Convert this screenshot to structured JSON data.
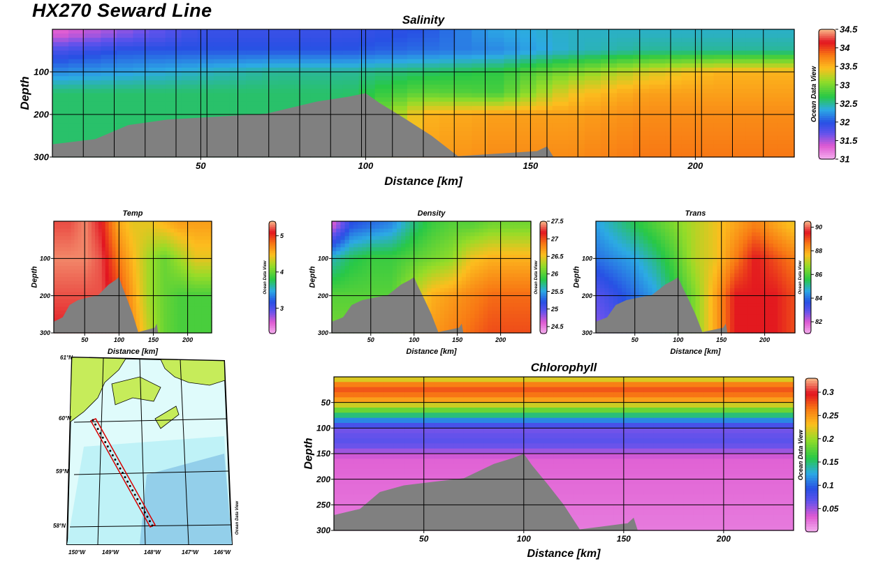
{
  "page_title": "HX270 Seward Line",
  "chart_data": [
    {
      "id": "salinity",
      "type": "heatmap",
      "title": "Salinity",
      "xlabel": "Distance [km]",
      "ylabel": "Depth",
      "xlim": [
        5,
        230
      ],
      "ylim": [
        300,
        0
      ],
      "x_ticks": [
        50,
        100,
        150,
        200
      ],
      "y_ticks": [
        100,
        200,
        300
      ],
      "colorbar": {
        "ticks": [
          "34.5",
          "34",
          "33.5",
          "33",
          "32.5",
          "32",
          "31.5",
          "31"
        ],
        "range": [
          31,
          34.5
        ]
      },
      "watermark": "Ocean Data View",
      "layers": [
        {
          "depth": 10,
          "values": [
            31.3,
            31.6,
            31.9,
            31.9,
            31.9,
            32.0,
            32.3,
            32.4,
            32.4,
            32.4,
            32.4
          ]
        },
        {
          "depth": 50,
          "values": [
            31.8,
            32.0,
            32.0,
            32.0,
            32.0,
            32.1,
            32.2,
            32.4,
            32.5,
            32.5,
            32.5
          ]
        },
        {
          "depth": 100,
          "values": [
            32.2,
            32.3,
            32.4,
            32.5,
            32.5,
            32.6,
            32.7,
            33.0,
            33.3,
            33.5,
            33.5
          ]
        },
        {
          "depth": 150,
          "values": [
            32.6,
            32.6,
            32.6,
            32.6,
            32.6,
            32.9,
            32.8,
            33.4,
            33.6,
            33.6,
            33.6
          ]
        },
        {
          "depth": 200,
          "values": [
            32.6,
            32.6,
            32.6,
            32.6,
            32.6,
            33.5,
            33.6,
            33.6,
            33.7,
            33.7,
            33.7
          ]
        },
        {
          "depth": 300,
          "values": [
            32.6,
            32.6,
            32.6,
            32.6,
            32.6,
            33.6,
            33.7,
            33.7,
            33.8,
            33.8,
            33.8
          ]
        }
      ]
    },
    {
      "id": "temp",
      "type": "heatmap",
      "title": "Temp",
      "xlabel": "Distance [km]",
      "ylabel": "Depth",
      "xlim": [
        5,
        235
      ],
      "ylim": [
        300,
        0
      ],
      "x_ticks": [
        50,
        100,
        150,
        200
      ],
      "y_ticks": [
        100,
        200,
        300
      ],
      "colorbar": {
        "ticks": [
          "5",
          "4",
          "3"
        ],
        "range": [
          2.3,
          5.4
        ]
      },
      "watermark": "Ocean Data View",
      "layers": [
        {
          "depth": 10,
          "values": [
            5.2,
            5.2,
            5.3,
            5.1,
            4.6,
            4.4,
            4.4,
            4.5,
            4.6,
            4.6,
            4.6
          ]
        },
        {
          "depth": 100,
          "values": [
            5.3,
            5.3,
            5.3,
            5.2,
            4.8,
            4.5,
            4.2,
            4.0,
            4.2,
            4.4,
            4.4
          ]
        },
        {
          "depth": 200,
          "values": [
            5.2,
            5.2,
            5.2,
            5.2,
            5.0,
            4.6,
            4.2,
            4.0,
            3.9,
            3.9,
            3.9
          ]
        },
        {
          "depth": 300,
          "values": [
            5.1,
            5.1,
            5.1,
            5.1,
            5.1,
            4.7,
            4.3,
            4.0,
            3.9,
            3.9,
            3.9
          ]
        }
      ]
    },
    {
      "id": "density",
      "type": "heatmap",
      "title": "Density",
      "xlabel": "Distance [km]",
      "ylabel": "Depth",
      "xlim": [
        5,
        235
      ],
      "ylim": [
        300,
        0
      ],
      "x_ticks": [
        50,
        100,
        150,
        200
      ],
      "y_ticks": [
        100,
        200,
        300
      ],
      "colorbar": {
        "ticks": [
          "27.5",
          "27",
          "26.5",
          "26",
          "25.5",
          "25",
          "24.5"
        ],
        "range": [
          24.3,
          27.5
        ]
      },
      "watermark": "Ocean Data View",
      "layers": [
        {
          "depth": 10,
          "values": [
            24.6,
            25.2,
            25.3,
            25.4,
            25.7,
            25.9,
            26.0,
            26.0,
            26.1,
            26.1,
            26.1
          ]
        },
        {
          "depth": 100,
          "values": [
            25.6,
            25.8,
            25.9,
            25.9,
            26.0,
            26.1,
            26.2,
            26.5,
            26.6,
            26.6,
            26.6
          ]
        },
        {
          "depth": 200,
          "values": [
            26.0,
            26.0,
            26.0,
            26.0,
            26.3,
            26.6,
            26.7,
            26.8,
            26.9,
            26.9,
            26.9
          ]
        },
        {
          "depth": 300,
          "values": [
            26.1,
            26.1,
            26.1,
            26.1,
            26.5,
            26.7,
            26.8,
            26.9,
            27.0,
            27.0,
            27.0
          ]
        }
      ]
    },
    {
      "id": "trans",
      "type": "heatmap",
      "title": "Trans",
      "xlabel": "Distance [km]",
      "ylabel": "Depth",
      "xlim": [
        5,
        235
      ],
      "ylim": [
        300,
        0
      ],
      "x_ticks": [
        50,
        100,
        150,
        200
      ],
      "y_ticks": [
        100,
        200,
        300
      ],
      "colorbar": {
        "ticks": [
          "90",
          "88",
          "86",
          "84",
          "82"
        ],
        "range": [
          81,
          90.5
        ]
      },
      "watermark": "Ocean Data View",
      "layers": [
        {
          "depth": 10,
          "values": [
            84.5,
            85.0,
            85.5,
            86.0,
            86.5,
            87.0,
            87.5,
            88.0,
            88.5,
            88.0,
            87.5
          ]
        },
        {
          "depth": 100,
          "values": [
            84.0,
            84.3,
            84.6,
            85.2,
            86.0,
            87.0,
            87.5,
            88.5,
            89.5,
            89.0,
            88.5
          ]
        },
        {
          "depth": 200,
          "values": [
            83.0,
            83.5,
            84.0,
            84.5,
            85.5,
            86.5,
            88.0,
            89.5,
            89.5,
            89.5,
            89.0
          ]
        },
        {
          "depth": 300,
          "values": [
            82.5,
            83.0,
            84.0,
            84.5,
            85.5,
            86.5,
            88.0,
            89.5,
            89.5,
            89.5,
            89.0
          ]
        }
      ]
    },
    {
      "id": "chlorophyll",
      "type": "heatmap",
      "title": "Chlorophyll",
      "xlabel": "Distance [km]",
      "ylabel": "Depth",
      "xlim": [
        5,
        235
      ],
      "ylim": [
        300,
        0
      ],
      "x_ticks": [
        50,
        100,
        150,
        200
      ],
      "y_ticks": [
        50,
        100,
        150,
        200,
        250,
        300
      ],
      "colorbar": {
        "ticks": [
          "0.3",
          "0.25",
          "0.2",
          "0.15",
          "0.1",
          "0.05"
        ],
        "range": [
          0,
          0.33
        ]
      },
      "watermark": "Ocean Data View",
      "layers": [
        {
          "depth": 5,
          "values": [
            0.22,
            0.22,
            0.22,
            0.22,
            0.22,
            0.22,
            0.22,
            0.22,
            0.22,
            0.22,
            0.22
          ]
        },
        {
          "depth": 20,
          "values": [
            0.28,
            0.28,
            0.28,
            0.28,
            0.28,
            0.28,
            0.28,
            0.28,
            0.28,
            0.28,
            0.28
          ]
        },
        {
          "depth": 40,
          "values": [
            0.26,
            0.26,
            0.26,
            0.26,
            0.26,
            0.26,
            0.26,
            0.26,
            0.26,
            0.26,
            0.26
          ]
        },
        {
          "depth": 60,
          "values": [
            0.2,
            0.2,
            0.2,
            0.2,
            0.2,
            0.2,
            0.2,
            0.2,
            0.2,
            0.2,
            0.2
          ]
        },
        {
          "depth": 80,
          "values": [
            0.13,
            0.13,
            0.13,
            0.13,
            0.13,
            0.13,
            0.13,
            0.13,
            0.13,
            0.13,
            0.13
          ]
        },
        {
          "depth": 100,
          "values": [
            0.06,
            0.06,
            0.06,
            0.06,
            0.06,
            0.06,
            0.06,
            0.06,
            0.06,
            0.06,
            0.06
          ]
        },
        {
          "depth": 130,
          "values": [
            0.07,
            0.07,
            0.07,
            0.07,
            0.07,
            0.07,
            0.07,
            0.07,
            0.07,
            0.07,
            0.07
          ]
        },
        {
          "depth": 160,
          "values": [
            0.03,
            0.03,
            0.03,
            0.03,
            0.03,
            0.03,
            0.03,
            0.03,
            0.03,
            0.03,
            0.03
          ]
        },
        {
          "depth": 300,
          "values": [
            0.02,
            0.02,
            0.02,
            0.02,
            0.02,
            0.02,
            0.02,
            0.02,
            0.02,
            0.02,
            0.02
          ]
        }
      ]
    }
  ],
  "bathymetry": {
    "points": [
      [
        5,
        270
      ],
      [
        18,
        258
      ],
      [
        28,
        225
      ],
      [
        40,
        212
      ],
      [
        55,
        205
      ],
      [
        70,
        198
      ],
      [
        85,
        170
      ],
      [
        95,
        158
      ],
      [
        100,
        150
      ],
      [
        104,
        172
      ],
      [
        112,
        210
      ],
      [
        120,
        250
      ],
      [
        128,
        298
      ],
      [
        140,
        292
      ],
      [
        152,
        286
      ],
      [
        155,
        275
      ],
      [
        157,
        300
      ]
    ]
  },
  "map": {
    "lat_labels": [
      "61°N",
      "60°N",
      "59°N",
      "58°N"
    ],
    "lon_labels": [
      "150°W",
      "149°W",
      "148°W",
      "147°W",
      "146°W"
    ],
    "watermark": "Ocean Data View",
    "colors": {
      "land": "#c6ec5a",
      "sea_light": "#dffbfb",
      "sea_mid": "#bff2f7",
      "sea_deep": "#93cfea",
      "route": "#d80000"
    }
  }
}
